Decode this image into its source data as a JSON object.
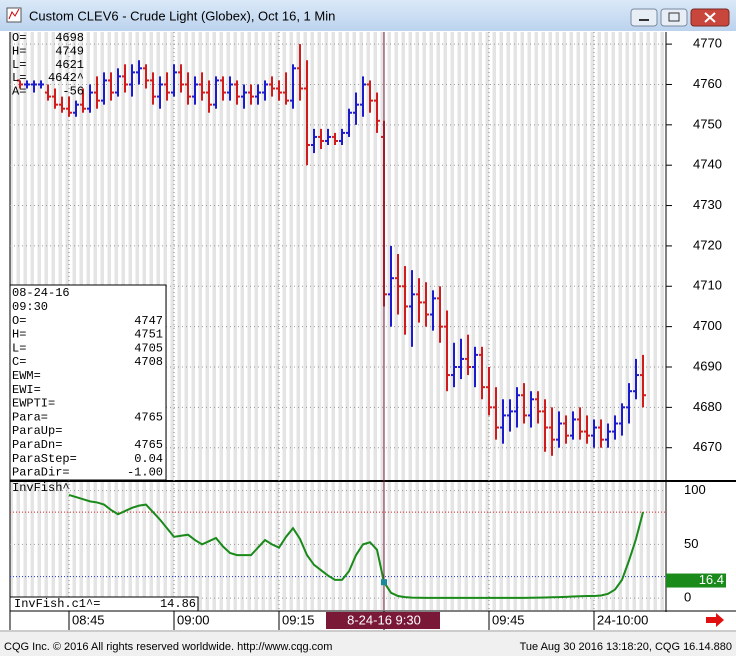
{
  "window": {
    "title": "Custom CLEV6 - Crude Light (Globex), Oct 16, 1 Min"
  },
  "readout": [
    [
      "O=",
      "4698"
    ],
    [
      "H=",
      "4749"
    ],
    [
      "L=",
      "4621"
    ],
    [
      "L=",
      "4642^"
    ],
    [
      "A=",
      "-56"
    ]
  ],
  "cursor_box": {
    "date": "08-24-16",
    "time": "09:30",
    "rows": [
      [
        "O=",
        "4747"
      ],
      [
        "H=",
        "4751"
      ],
      [
        "L=",
        "4705"
      ],
      [
        "C=",
        "4708"
      ],
      [
        "EWM="
      ],
      [
        "EWI="
      ],
      [
        "EWPTI="
      ],
      [
        "Para=",
        "4765"
      ],
      [
        "ParaUp="
      ],
      [
        "ParaDn=",
        "4765"
      ],
      [
        "ParaStep=",
        "0.04"
      ],
      [
        "ParaDir=",
        "-1.00"
      ]
    ]
  },
  "footer": {
    "left": "CQG Inc. © 2016 All rights reserved worldwide. http://www.cqg.com",
    "right": "Tue Aug 30 2016 13:18:20, CQG 16.14.880"
  },
  "chart_data": [
    {
      "type": "ohlc",
      "cursor": "09:30",
      "up_color": "#1c1ccc",
      "down_color": "#d01c1c",
      "ylim": [
        4662,
        4773
      ],
      "yticks": [
        4670,
        4680,
        4690,
        4700,
        4710,
        4720,
        4730,
        4740,
        4750,
        4760,
        4770
      ],
      "grid": true,
      "xticks": [
        "08:45",
        "09:00",
        "09:15",
        {
          "value": "09:30",
          "label": "8-24-16  9:30"
        },
        "09:45",
        {
          "value": "10:00",
          "label": "24-10:00"
        }
      ],
      "x": [
        "08:38",
        "08:39",
        "08:40",
        "08:41",
        "08:42",
        "08:43",
        "08:44",
        "08:45",
        "08:46",
        "08:47",
        "08:48",
        "08:49",
        "08:50",
        "08:51",
        "08:52",
        "08:53",
        "08:54",
        "08:55",
        "08:56",
        "08:57",
        "08:58",
        "08:59",
        "09:00",
        "09:01",
        "09:02",
        "09:03",
        "09:04",
        "09:05",
        "09:06",
        "09:07",
        "09:08",
        "09:09",
        "09:10",
        "09:11",
        "09:12",
        "09:13",
        "09:14",
        "09:15",
        "09:16",
        "09:17",
        "09:18",
        "09:19",
        "09:20",
        "09:21",
        "09:22",
        "09:23",
        "09:24",
        "09:25",
        "09:26",
        "09:27",
        "09:28",
        "09:29",
        "09:30",
        "09:31",
        "09:32",
        "09:33",
        "09:34",
        "09:35",
        "09:36",
        "09:37",
        "09:38",
        "09:39",
        "09:40",
        "09:41",
        "09:42",
        "09:43",
        "09:44",
        "09:45",
        "09:46",
        "09:47",
        "09:48",
        "09:49",
        "09:50",
        "09:51",
        "09:52",
        "09:53",
        "09:54",
        "09:55",
        "09:56",
        "09:57",
        "09:58",
        "09:59",
        "10:00",
        "10:01",
        "10:02",
        "10:03",
        "10:04",
        "10:05",
        "10:06",
        "10:07"
      ],
      "open": [
        4761,
        4760,
        4760,
        4760,
        4758,
        4757,
        4755,
        4754,
        4753,
        4755,
        4754,
        4758,
        4756,
        4761,
        4758,
        4762,
        4760,
        4763,
        4764,
        4761,
        4757,
        4760,
        4758,
        4763,
        4760,
        4757,
        4760,
        4758,
        4755,
        4761,
        4758,
        4760,
        4757,
        4758,
        4757,
        4758,
        4760,
        4759,
        4758,
        4756,
        4764,
        4759,
        4745,
        4747,
        4746,
        4747,
        4746,
        4748,
        4753,
        4755,
        4760,
        4756,
        4747,
        4708,
        4712,
        4710,
        4705,
        4708,
        4706,
        4703,
        4707,
        4700,
        4688,
        4690,
        4692,
        4690,
        4693,
        4685,
        4680,
        4675,
        4678,
        4679,
        4683,
        4678,
        4682,
        4679,
        4675,
        4672,
        4676,
        4673,
        4677,
        4674,
        4673,
        4675,
        4672,
        4674,
        4676,
        4680,
        4684,
        4688
      ],
      "high": [
        4761,
        4761,
        4761,
        4761,
        4760,
        4759,
        4757,
        4757,
        4756,
        4759,
        4760,
        4762,
        4763,
        4763,
        4764,
        4765,
        4765,
        4766,
        4765,
        4763,
        4762,
        4763,
        4765,
        4765,
        4763,
        4762,
        4763,
        4761,
        4762,
        4762,
        4762,
        4761,
        4760,
        4760,
        4760,
        4761,
        4762,
        4761,
        4763,
        4765,
        4770,
        4766,
        4749,
        4749,
        4749,
        4748,
        4749,
        4754,
        4758,
        4762,
        4761,
        4758,
        4751,
        4720,
        4718,
        4715,
        4714,
        4712,
        4711,
        4709,
        4710,
        4704,
        4696,
        4697,
        4698,
        4695,
        4695,
        4690,
        4685,
        4682,
        4682,
        4685,
        4686,
        4684,
        4684,
        4682,
        4680,
        4679,
        4678,
        4679,
        4680,
        4678,
        4677,
        4677,
        4676,
        4678,
        4681,
        4686,
        4692,
        4693
      ],
      "low": [
        4759,
        4759,
        4758,
        4759,
        4756,
        4754,
        4753,
        4752,
        4752,
        4753,
        4753,
        4754,
        4755,
        4756,
        4757,
        4758,
        4757,
        4760,
        4759,
        4755,
        4754,
        4756,
        4757,
        4758,
        4755,
        4755,
        4756,
        4753,
        4754,
        4756,
        4756,
        4755,
        4754,
        4755,
        4755,
        4756,
        4757,
        4756,
        4755,
        4754,
        4756,
        4740,
        4743,
        4744,
        4745,
        4745,
        4745,
        4747,
        4750,
        4752,
        4753,
        4748,
        4705,
        4700,
        4703,
        4698,
        4695,
        4701,
        4700,
        4699,
        4696,
        4684,
        4685,
        4687,
        4688,
        4685,
        4682,
        4678,
        4672,
        4671,
        4674,
        4675,
        4676,
        4675,
        4676,
        4669,
        4668,
        4670,
        4671,
        4672,
        4672,
        4671,
        4670,
        4670,
        4670,
        4672,
        4673,
        4676,
        4682,
        4680
      ],
      "close": [
        4760,
        4760,
        4760,
        4760,
        4757,
        4755,
        4754,
        4753,
        4755,
        4754,
        4758,
        4756,
        4761,
        4758,
        4762,
        4760,
        4763,
        4764,
        4761,
        4757,
        4760,
        4758,
        4763,
        4760,
        4757,
        4760,
        4758,
        4755,
        4761,
        4758,
        4760,
        4757,
        4758,
        4757,
        4758,
        4760,
        4759,
        4758,
        4756,
        4764,
        4759,
        4745,
        4747,
        4746,
        4747,
        4746,
        4748,
        4753,
        4755,
        4760,
        4756,
        4751,
        4708,
        4712,
        4710,
        4705,
        4708,
        4706,
        4703,
        4707,
        4700,
        4688,
        4690,
        4692,
        4690,
        4693,
        4685,
        4680,
        4675,
        4678,
        4679,
        4683,
        4678,
        4682,
        4679,
        4675,
        4672,
        4676,
        4673,
        4677,
        4674,
        4673,
        4675,
        4672,
        4674,
        4676,
        4680,
        4684,
        4688,
        4683
      ]
    },
    {
      "type": "line",
      "title": "InvFish^",
      "color": "#1a8a1a",
      "ylim": [
        -11,
        108
      ],
      "yticks": [
        0,
        50,
        100
      ],
      "ref_lines": [
        {
          "value": 80,
          "color": "#d02020"
        },
        {
          "value": 20,
          "color": "#2030d0"
        }
      ],
      "readout_label": "InvFish.c1^=",
      "readout_value": 14.86,
      "current_value": 16.4,
      "values": [
        null,
        null,
        null,
        null,
        null,
        null,
        null,
        96,
        94,
        92,
        90,
        89,
        87,
        82,
        78,
        81,
        84,
        86,
        87,
        80,
        73,
        65,
        57,
        58,
        59,
        54,
        50,
        53,
        56,
        48,
        42,
        40,
        40,
        40,
        47,
        54,
        50,
        47,
        57,
        65,
        55,
        40,
        31,
        26,
        21,
        17,
        17,
        25,
        40,
        50,
        52,
        45,
        14.86,
        5,
        2,
        1,
        0.5,
        0.4,
        0.3,
        0.3,
        0.3,
        0.3,
        0.3,
        0.3,
        0.3,
        0.3,
        0.3,
        0.3,
        0.3,
        0.3,
        0.3,
        0.3,
        0.3,
        0.4,
        0.5,
        0.6,
        0.8,
        1,
        1.2,
        1.5,
        1.8,
        2,
        2,
        2.5,
        4,
        8,
        17,
        35,
        55,
        80
      ]
    }
  ]
}
